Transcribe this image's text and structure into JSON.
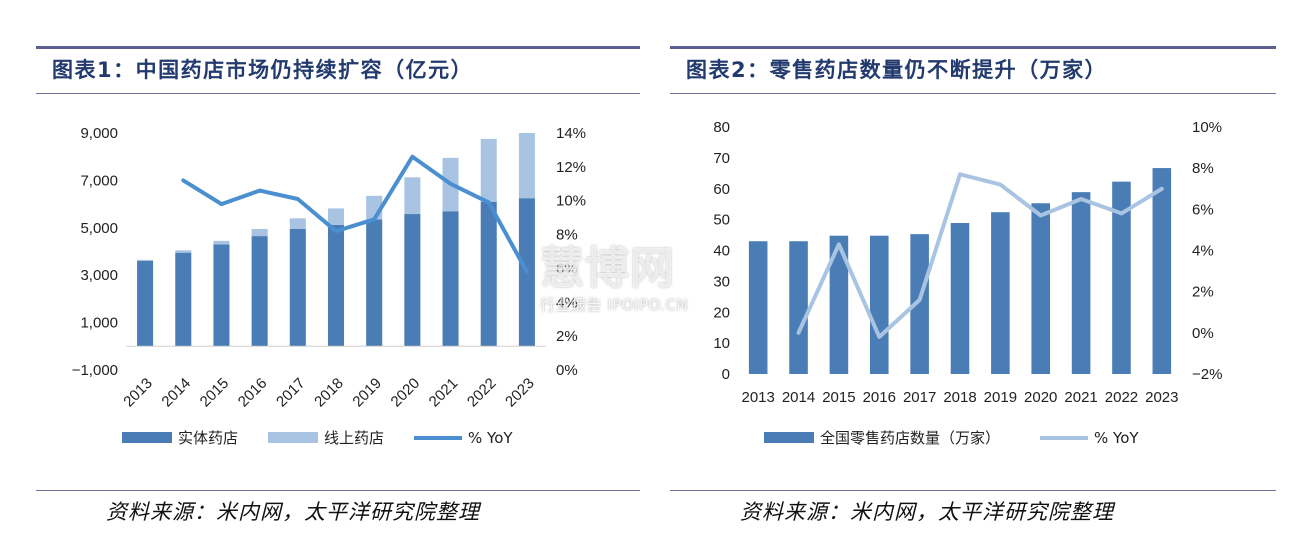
{
  "left": {
    "title": "图表1：中国药店市场仍持续扩容（亿元）",
    "source": "资料来源：米内网，太平洋研究院整理"
  },
  "right": {
    "title": "图表2：零售药店数量仍不断提升（万家）",
    "source": "资料来源：米内网，太平洋研究院整理"
  },
  "watermark": {
    "main": "慧博网",
    "sub": "行业报告 IPOIPO.CN"
  },
  "chart_data": [
    {
      "type": "bar",
      "stacked": true,
      "categories": [
        "2013",
        "2014",
        "2015",
        "2016",
        "2017",
        "2018",
        "2019",
        "2020",
        "2021",
        "2022",
        "2023"
      ],
      "series": [
        {
          "name": "实体药店",
          "axis": "left",
          "color": "#4a7db5",
          "values": [
            3600,
            3950,
            4300,
            4650,
            4950,
            5120,
            5350,
            5580,
            5700,
            6100,
            6250
          ]
        },
        {
          "name": "线上药店",
          "axis": "left",
          "color": "#a9c4e2",
          "values": [
            50,
            100,
            150,
            300,
            450,
            700,
            1000,
            1550,
            2250,
            2650,
            2750
          ]
        },
        {
          "name": "% YoY",
          "type": "line",
          "axis": "right",
          "color": "#4a8fd0",
          "values": [
            null,
            11.2,
            9.8,
            10.6,
            10.1,
            8.2,
            8.9,
            12.6,
            11.0,
            9.9,
            5.8
          ]
        }
      ],
      "yleft": {
        "ticks": [
          "9,000",
          "7,000",
          "5,000",
          "3,000",
          "1,000",
          "−1,000"
        ],
        "min": -1000,
        "max": 9000
      },
      "yright": {
        "ticks": [
          "14%",
          "12%",
          "10%",
          "8%",
          "6%",
          "4%",
          "2%",
          "0%"
        ],
        "min": 0,
        "max": 14
      },
      "legend": {
        "position": "bottom"
      }
    },
    {
      "type": "bar",
      "categories": [
        "2013",
        "2014",
        "2015",
        "2016",
        "2017",
        "2018",
        "2019",
        "2020",
        "2021",
        "2022",
        "2023"
      ],
      "series": [
        {
          "name": "全国零售药店数量（万家）",
          "axis": "left",
          "color": "#4a7db5",
          "values": [
            43.0,
            43.0,
            44.8,
            44.8,
            45.3,
            48.9,
            52.4,
            55.3,
            58.9,
            62.3,
            66.7
          ]
        },
        {
          "name": "% YoY",
          "type": "line",
          "axis": "right",
          "color": "#a9c4e2",
          "values": [
            null,
            0.0,
            4.3,
            -0.2,
            1.6,
            7.7,
            7.2,
            5.7,
            6.5,
            5.8,
            7.0
          ]
        }
      ],
      "yleft": {
        "ticks": [
          "80",
          "70",
          "60",
          "50",
          "40",
          "30",
          "20",
          "10",
          "0"
        ],
        "min": 0,
        "max": 80
      },
      "yright": {
        "ticks": [
          "10%",
          "8%",
          "6%",
          "4%",
          "2%",
          "0%",
          "−2%"
        ],
        "min": -2,
        "max": 10
      },
      "legend": {
        "position": "bottom"
      }
    }
  ]
}
